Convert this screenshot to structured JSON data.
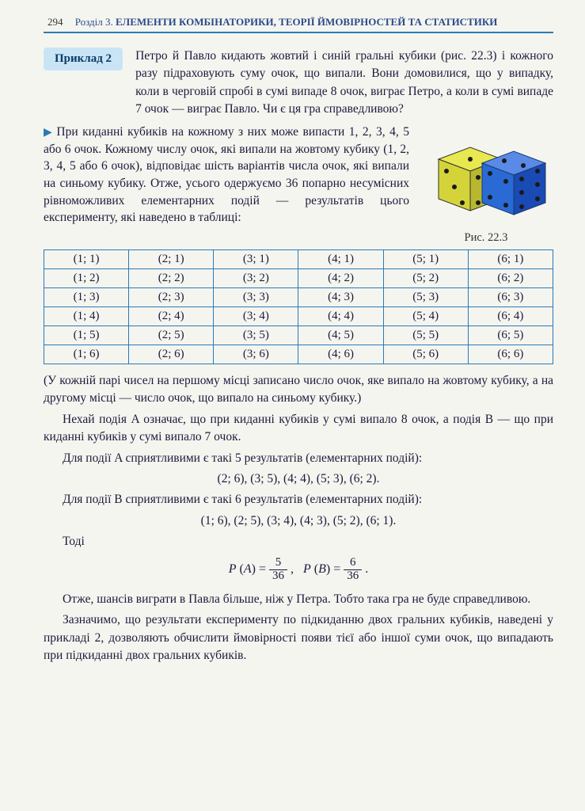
{
  "header": {
    "page_number": "294",
    "section_label": "Розділ 3.",
    "section_title": "ЕЛЕМЕНТИ КОМБІНАТОРИКИ, ТЕОРІЇ ЙМОВІРНОСТЕЙ ТА СТАТИСТИКИ"
  },
  "example": {
    "label": "Приклад 2",
    "problem": "Петро й Павло кидають жовтий і синій гральні кубики (рис. 22.3) і кожного разу підраховують суму очок, що випали. Вони домовилися, що у випадку, коли в черговій спробі в сумі випаде 8 очок, виграє Петро, а коли в сумі випаде 7 очок — виграє Павло. Чи є ця гра справедливою?"
  },
  "solution_intro": "При киданні кубиків на кожному з них може випасти 1, 2, 3, 4, 5 або 6 очок. Кожному числу очок, які випали на жовтому кубику (1, 2, 3, 4, 5 або 6 очок), відповідає шість варіантів числа очок, які випали на синьому кубику. Отже, усього одержуємо 36 попарно несумісних рівноможливих елементарних подій — результатів цього експерименту, які наведено в таблиці:",
  "figure": {
    "caption": "Рис. 22.3",
    "colors": {
      "die1": "#d4d43a",
      "die2": "#2a6ad4",
      "pip": "#1a1a1a",
      "edge": "#333"
    }
  },
  "table": {
    "rows": [
      [
        "(1; 1)",
        "(2; 1)",
        "(3; 1)",
        "(4; 1)",
        "(5; 1)",
        "(6; 1)"
      ],
      [
        "(1; 2)",
        "(2; 2)",
        "(3; 2)",
        "(4; 2)",
        "(5; 2)",
        "(6; 2)"
      ],
      [
        "(1; 3)",
        "(2; 3)",
        "(3; 3)",
        "(4; 3)",
        "(5; 3)",
        "(6; 3)"
      ],
      [
        "(1; 4)",
        "(2; 4)",
        "(3; 4)",
        "(4; 4)",
        "(5; 4)",
        "(6; 4)"
      ],
      [
        "(1; 5)",
        "(2; 5)",
        "(3; 5)",
        "(4; 5)",
        "(5; 5)",
        "(6; 5)"
      ],
      [
        "(1; 6)",
        "(2; 6)",
        "(3; 6)",
        "(4; 6)",
        "(5; 6)",
        "(6; 6)"
      ]
    ],
    "border_color": "#2a7ab8"
  },
  "note": "(У кожній парі чисел на першому місці записано число очок, яке випало на жовтому кубику, а на другому місці — число очок, що випало на синьому кубику.)",
  "events_def": "Нехай подія A означає, що при киданні кубиків у сумі випало 8 очок, а подія B — що при киданні кубиків у сумі випало 7 очок.",
  "fav_A_text": "Для події A сприятливими є такі 5 результатів (елементарних подій):",
  "fav_A_list": "(2; 6), (3; 5), (4; 4), (5; 3), (6; 2).",
  "fav_B_text": "Для події B сприятливими є такі 6 результатів (елементарних подій):",
  "fav_B_list": "(1; 6), (2; 5), (3; 4), (4; 3), (5; 2), (6; 1).",
  "then_label": "Тоді",
  "formula": {
    "pA_num": "5",
    "pA_den": "36",
    "pB_num": "6",
    "pB_den": "36"
  },
  "conclusion": "Отже, шансів виграти в Павла більше, ніж у Петра. Тобто така гра не буде справедливою.",
  "remark": "Зазначимо, що результати експерименту по підкиданню двох гральних кубиків, наведені у прикладі 2, дозволяють обчислити ймовірності появи тієї або іншої суми очок, що випадають при підкиданні двох гральних кубиків."
}
